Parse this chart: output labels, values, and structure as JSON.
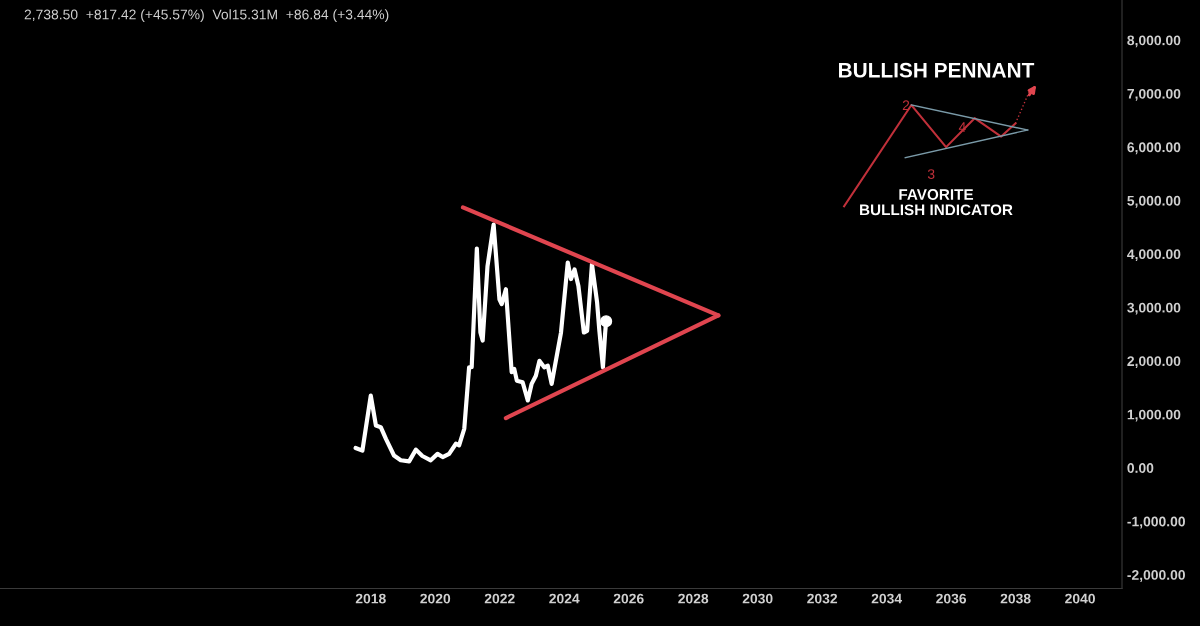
{
  "chart_data": {
    "type": "line",
    "annotations": [
      "2,738.50  +817.42 (+45.57%)  Vol15.31M  +86.84 (+3.44%)",
      "BULLISH PENNANT",
      "2",
      "3",
      "4",
      "FAVORITE\nBULLISH INDICATOR"
    ],
    "series": [
      {
        "color": "#ffffff",
        "x": [
          2017.53,
          2017.74,
          2018.0,
          2018.16,
          2018.31,
          2018.47,
          2018.72,
          2018.93,
          2019.19,
          2019.4,
          2019.6,
          2019.86,
          2020.07,
          2020.23,
          2020.43,
          2020.64,
          2020.74,
          2020.9,
          2021.05,
          2021.13,
          2021.29,
          2021.4,
          2021.47,
          2021.62,
          2021.81,
          2021.99,
          2022.06,
          2022.19,
          2022.37,
          2022.45,
          2022.53,
          2022.71,
          2022.87,
          2022.99,
          2023.12,
          2023.23,
          2023.38,
          2023.49,
          2023.61,
          2023.9,
          2024.11,
          2024.21,
          2024.32,
          2024.44,
          2024.61,
          2024.71,
          2024.86,
          2025.02,
          2025.09,
          2025.2,
          2025.27,
          2025.3
        ],
        "values": [
          370,
          320,
          1350,
          790,
          760,
          540,
          230,
          140,
          120,
          340,
          220,
          140,
          260,
          200,
          260,
          450,
          420,
          730,
          1880,
          1880,
          4100,
          2530,
          2380,
          3770,
          4550,
          3150,
          3060,
          3340,
          1790,
          1850,
          1630,
          1600,
          1260,
          1570,
          1720,
          2000,
          1880,
          1910,
          1570,
          2530,
          3840,
          3530,
          3710,
          3400,
          2530,
          2560,
          3810,
          3090,
          2560,
          1880,
          2530,
          2740
        ]
      },
      {
        "color": "#e0454f",
        "x": [
          2020.86,
          2028.78
        ],
        "values": [
          4870,
          2850
        ]
      },
      {
        "color": "#e0454f",
        "x": [
          2022.19,
          2028.78
        ],
        "values": [
          930,
          2850
        ]
      },
      {
        "type": "scatter",
        "color": "#ffffff",
        "marker": "circle",
        "x": [
          2025.3
        ],
        "values": [
          2740
        ]
      }
    ],
    "xlim": [
      2006.5,
      2041.3
    ],
    "xticks": [
      2018,
      2020,
      2022,
      2024,
      2026,
      2028,
      2030,
      2032,
      2034,
      2036,
      2038,
      2040
    ],
    "ylim": [
      -2257,
      8750
    ],
    "yticks": [
      {
        "value": -2000,
        "label": "-2,000.00"
      },
      {
        "value": -1000,
        "label": "-1,000.00"
      },
      {
        "value": 0,
        "label": "0.00"
      },
      {
        "value": 1000,
        "label": "1,000.00"
      },
      {
        "value": 2000,
        "label": "2,000.00"
      },
      {
        "value": 3000,
        "label": "3,000.00"
      },
      {
        "value": 4000,
        "label": "4,000.00"
      },
      {
        "value": 5000,
        "label": "5,000.00"
      },
      {
        "value": 6000,
        "label": "6,000.00"
      },
      {
        "value": 7000,
        "label": "7,000.00"
      },
      {
        "value": 8000,
        "label": "8,000.00"
      }
    ],
    "grid": false,
    "legend": false
  }
}
